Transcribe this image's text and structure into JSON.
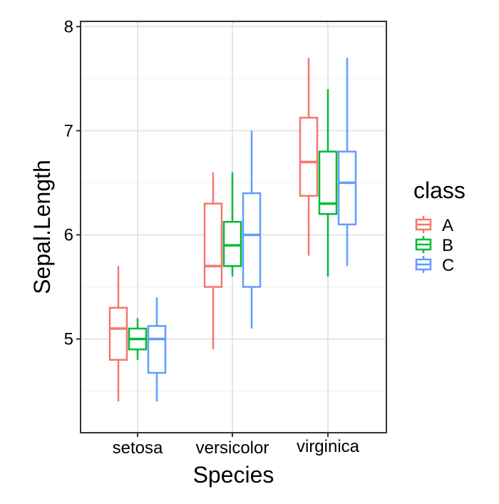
{
  "chart_data": {
    "type": "boxplot",
    "xlabel": "Species",
    "ylabel": "Sepal.Length",
    "categories": [
      "setosa",
      "versicolor",
      "virginica"
    ],
    "ylim": [
      4.1,
      8.05
    ],
    "yticks": [
      5,
      6,
      7,
      8
    ],
    "grid": true,
    "legend": {
      "title": "class",
      "position": "right"
    },
    "series": [
      {
        "name": "A",
        "color": "#F8766D",
        "boxes": [
          {
            "min": 4.4,
            "q1": 4.8,
            "median": 5.1,
            "q3": 5.3,
            "max": 5.7
          },
          {
            "min": 4.9,
            "q1": 5.5,
            "median": 5.7,
            "q3": 6.3,
            "max": 6.6
          },
          {
            "min": 5.8,
            "q1": 6.375,
            "median": 6.7,
            "q3": 7.125,
            "max": 7.7
          }
        ]
      },
      {
        "name": "B",
        "color": "#00BA38",
        "boxes": [
          {
            "min": 4.8,
            "q1": 4.9,
            "median": 5.0,
            "q3": 5.1,
            "max": 5.2
          },
          {
            "min": 5.6,
            "q1": 5.7,
            "median": 5.9,
            "q3": 6.125,
            "max": 6.6
          },
          {
            "min": 5.6,
            "q1": 6.2,
            "median": 6.3,
            "q3": 6.8,
            "max": 7.4
          }
        ]
      },
      {
        "name": "C",
        "color": "#619CFF",
        "boxes": [
          {
            "min": 4.4,
            "q1": 4.675,
            "median": 5.0,
            "q3": 5.125,
            "max": 5.4
          },
          {
            "min": 5.1,
            "q1": 5.5,
            "median": 6.0,
            "q3": 6.4,
            "max": 7.0
          },
          {
            "min": 5.7,
            "q1": 6.1,
            "median": 6.5,
            "q3": 6.8,
            "max": 7.7
          }
        ]
      }
    ]
  }
}
